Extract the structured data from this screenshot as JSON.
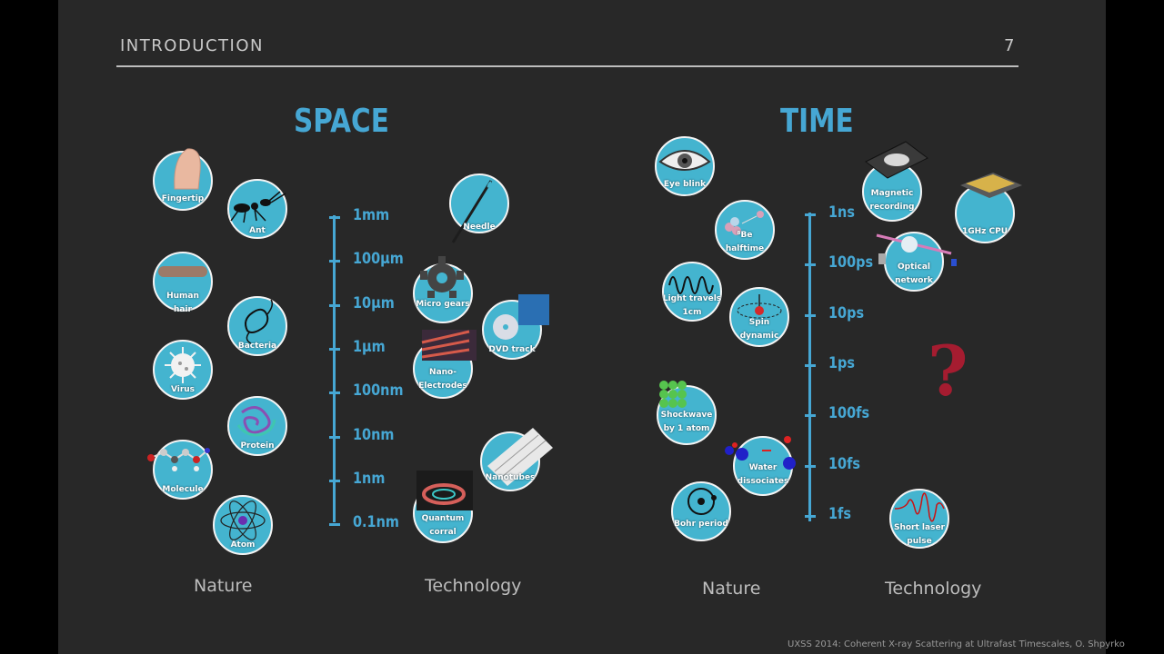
{
  "header": {
    "section": "INTRODUCTION",
    "page_number": "7"
  },
  "space": {
    "title": "SPACE",
    "scale": [
      "1mm",
      "100µm",
      "10µm",
      "1µm",
      "100nm",
      "10nm",
      "1nm",
      "0.1nm"
    ],
    "nature_label": "Nature",
    "technology_label": "Technology",
    "nature_items": [
      "Fingertip",
      "Ant",
      "Human\nhair",
      "Bacteria",
      "Virus",
      "Protein",
      "Molecule",
      "Atom"
    ],
    "technology_items": [
      "Needle",
      "Micro gears",
      "DVD track",
      "Nano-\nElectrodes",
      "Nanotubes",
      "Quantum\ncorral"
    ]
  },
  "time": {
    "title": "TIME",
    "scale": [
      "1ns",
      "100ps",
      "10ps",
      "1ps",
      "100fs",
      "10fs",
      "1fs"
    ],
    "nature_label": "Nature",
    "technology_label": "Technology",
    "nature_items": [
      "Eye blink",
      "⁸Be\nhalftime",
      "Light travels\n1cm",
      "Spin\ndynamic",
      "Shockwave\nby 1 atom",
      "Water\ndissociates",
      "Bohr period"
    ],
    "technology_items": [
      "Magnetic\nrecording",
      "1GHz CPU",
      "Optical\nnetwork",
      "Short laser\npulse"
    ],
    "unknown_marker": "?"
  },
  "credit": "UXSS 2014: Coherent X-ray Scattering at Ultrafast Timescales, O. Shpyrko",
  "colors": {
    "accent": "#46a7d4",
    "bubble": "#44b4cf",
    "question": "#a51c30",
    "background": "#282828"
  }
}
